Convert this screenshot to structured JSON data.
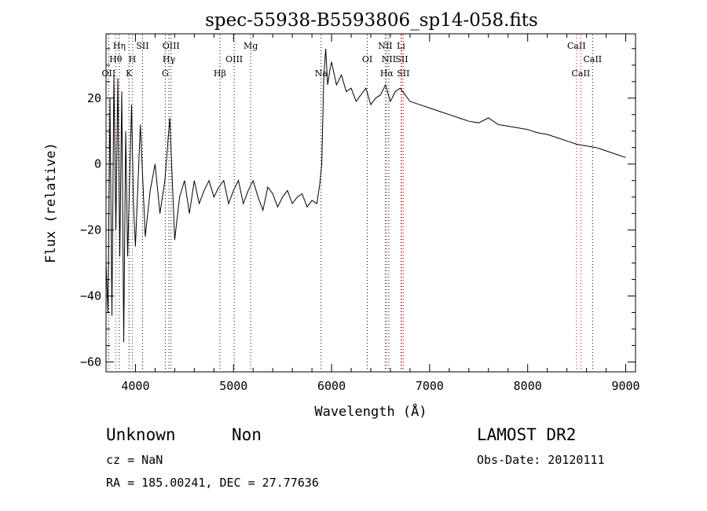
{
  "chart_data": {
    "type": "line",
    "title": "spec-55938-B5593806_sp14-058.fits",
    "xlabel": "Wavelength (Å)",
    "ylabel": "Flux (relative)",
    "xlim": [
      3700,
      9100
    ],
    "ylim": [
      -63,
      39.5
    ],
    "xticks": [
      4000,
      5000,
      6000,
      7000,
      8000,
      9000
    ],
    "xtick_labels": [
      "4000",
      "5000",
      "6000",
      "7000",
      "8000",
      "9000"
    ],
    "yticks": [
      -60,
      -40,
      -20,
      0,
      20
    ],
    "ytick_labels": [
      "−60",
      "−40",
      "−20",
      "0",
      "20"
    ],
    "spectrum": {
      "name": "flux",
      "color": "#000000",
      "x": [
        3700,
        3720,
        3740,
        3760,
        3780,
        3800,
        3820,
        3840,
        3860,
        3880,
        3900,
        3920,
        3940,
        3960,
        3980,
        4000,
        4050,
        4100,
        4150,
        4200,
        4250,
        4300,
        4350,
        4400,
        4450,
        4500,
        4550,
        4600,
        4650,
        4700,
        4750,
        4800,
        4850,
        4900,
        4950,
        5000,
        5050,
        5100,
        5150,
        5200,
        5250,
        5300,
        5350,
        5400,
        5450,
        5500,
        5550,
        5600,
        5650,
        5700,
        5750,
        5800,
        5850,
        5880,
        5900,
        5920,
        5940,
        5960,
        5980,
        6000,
        6050,
        6100,
        6150,
        6200,
        6250,
        6300,
        6350,
        6400,
        6450,
        6500,
        6550,
        6600,
        6650,
        6700,
        6750,
        6800,
        6900,
        7000,
        7100,
        7200,
        7300,
        7400,
        7500,
        7600,
        7700,
        7800,
        7900,
        8000,
        8100,
        8200,
        8300,
        8400,
        8500,
        8600,
        8700,
        8800,
        8900,
        9000
      ],
      "y": [
        -30,
        -45,
        20,
        -46,
        27,
        -20,
        26,
        -28,
        22,
        -54,
        10,
        -28,
        -5,
        18,
        -12,
        -25,
        12,
        -22,
        -8,
        0,
        -15,
        -5,
        14,
        -23,
        -10,
        -5,
        -15,
        -5,
        -12,
        -8,
        -5,
        -10,
        -7,
        -5,
        -12,
        -8,
        -5,
        -12,
        -8,
        -5,
        -10,
        -14,
        -7,
        -9,
        -13,
        -10,
        -8,
        -12,
        -10,
        -9,
        -13,
        -11,
        -12,
        -6,
        0,
        26,
        35,
        24,
        28,
        31,
        24,
        27,
        22,
        23,
        19,
        21,
        23,
        18,
        20,
        21,
        24,
        19,
        22,
        23,
        21,
        19,
        18,
        17,
        16,
        15,
        14,
        13,
        12.5,
        14,
        12,
        11.5,
        11,
        10.5,
        9.5,
        9,
        8,
        7,
        6,
        5.5,
        5,
        4,
        3,
        2
      ]
    },
    "annotations": [
      {
        "label": "OII",
        "wavelength": 3727,
        "row": 3
      },
      {
        "label": "Hθ",
        "wavelength": 3798,
        "row": 2
      },
      {
        "label": "Hη",
        "wavelength": 3835,
        "row": 1
      },
      {
        "label": "H",
        "wavelength": 3968,
        "row": 2
      },
      {
        "label": "K",
        "wavelength": 3934,
        "row": 3
      },
      {
        "label": "SII",
        "wavelength": 4072,
        "row": 1
      },
      {
        "label": "OIII",
        "wavelength": 4363,
        "row": 1
      },
      {
        "label": "Hγ",
        "wavelength": 4341,
        "row": 2
      },
      {
        "label": "G",
        "wavelength": 4304,
        "row": 3
      },
      {
        "label": "Hβ",
        "wavelength": 4861,
        "row": 3
      },
      {
        "label": "OIII",
        "wavelength": 5007,
        "row": 2
      },
      {
        "label": "Mg",
        "wavelength": 5175,
        "row": 1
      },
      {
        "label": "Na",
        "wavelength": 5893,
        "row": 3
      },
      {
        "label": "OI",
        "wavelength": 6364,
        "row": 2
      },
      {
        "label": "NII",
        "wavelength": 6548,
        "row": 1
      },
      {
        "label": "NII",
        "wavelength": 6584,
        "row": 2
      },
      {
        "label": "Hα",
        "wavelength": 6563,
        "row": 3
      },
      {
        "label": "Li",
        "wavelength": 6708,
        "row": 1
      },
      {
        "label": "SII",
        "wavelength": 6716,
        "row": 2
      },
      {
        "label": "SII",
        "wavelength": 6731,
        "row": 3
      },
      {
        "label": "CaII",
        "wavelength": 8498,
        "row": 1
      },
      {
        "label": "CaII",
        "wavelength": 8542,
        "row": 3
      },
      {
        "label": "CaII",
        "wavelength": 8662,
        "row": 2
      }
    ],
    "marker_lines": {
      "black": [
        3727,
        3835,
        3934,
        4072,
        4304,
        4341,
        4363,
        4861,
        5007,
        5175,
        5893,
        6364,
        6548,
        6584,
        8662
      ],
      "red": [
        3798,
        3968,
        6563,
        6708,
        6716,
        6731,
        8498,
        8542
      ]
    }
  },
  "info": {
    "class": "Unknown",
    "subclass": "Non",
    "cz": "cz = NaN",
    "coords": "RA = 185.00241, DEC =  27.77636",
    "survey": "LAMOST DR2",
    "obs_date": "Obs-Date: 20120111"
  }
}
